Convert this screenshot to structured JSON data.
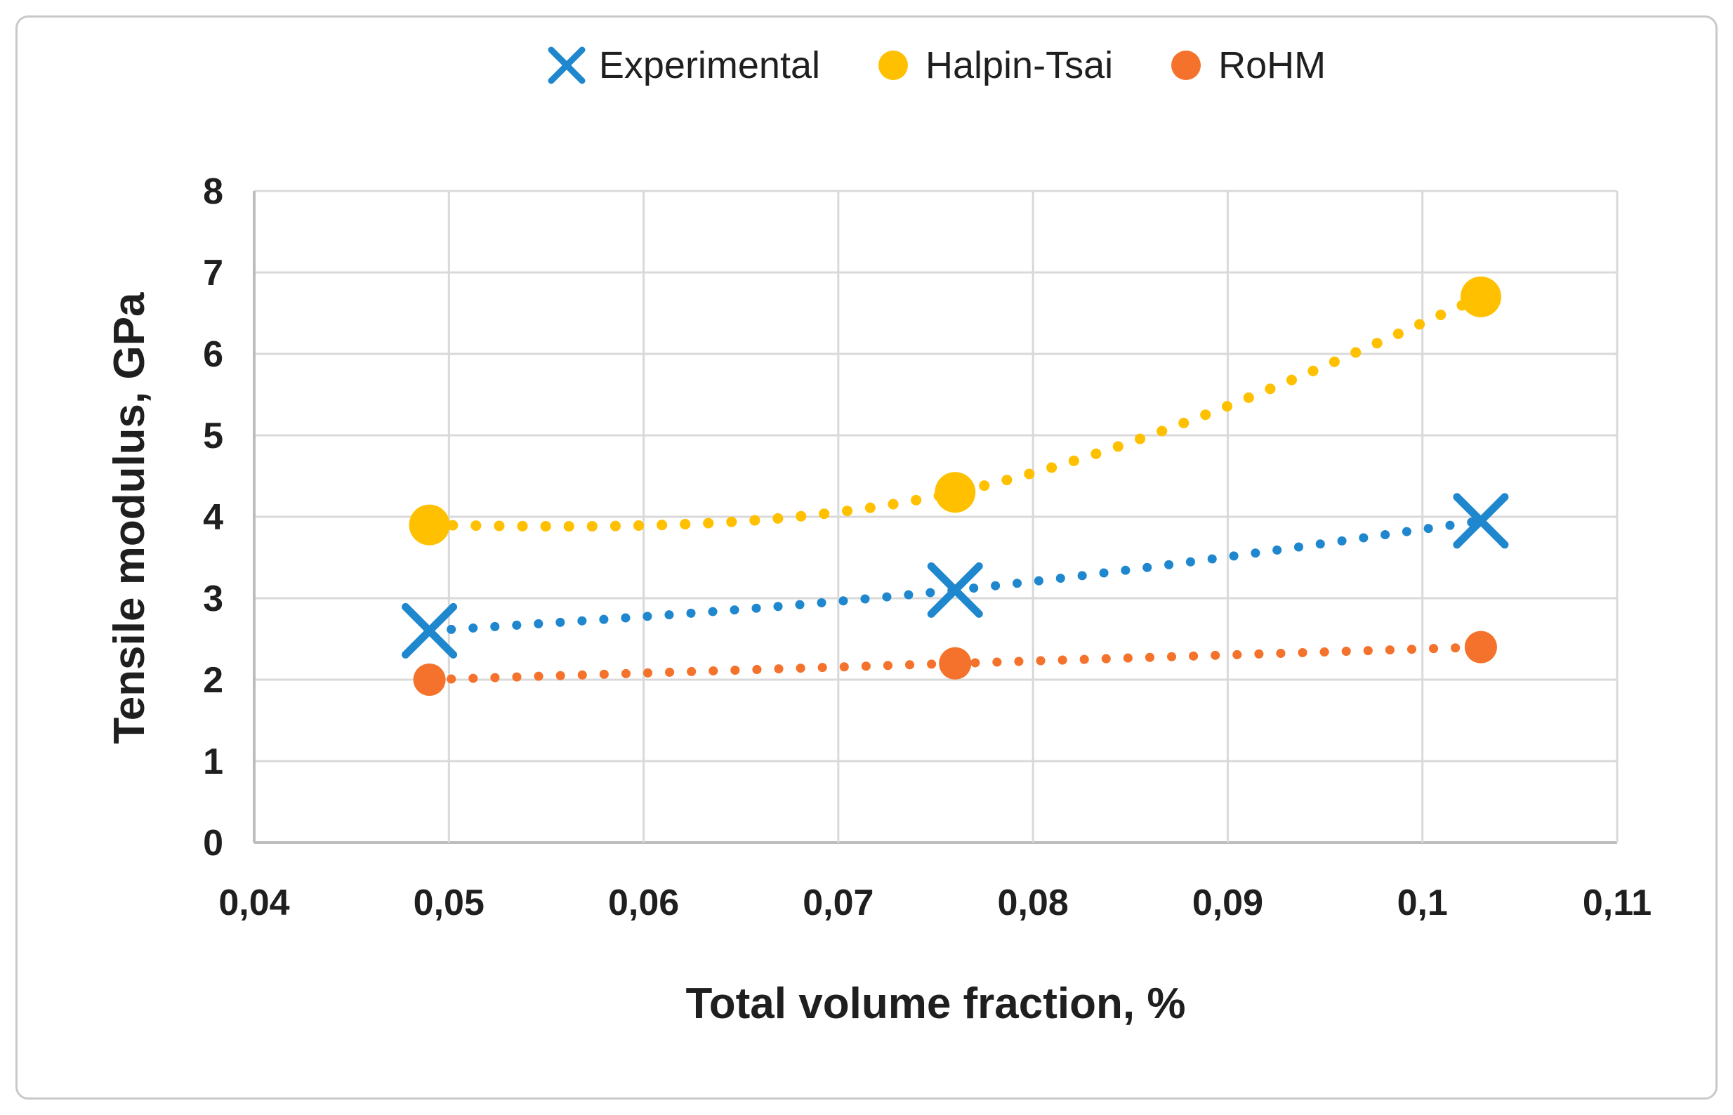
{
  "figure": {
    "background": "#ffffff",
    "frame_color": "#c9c9c9"
  },
  "legend": {
    "position": "top-center",
    "items": [
      {
        "label": "Experimental",
        "marker": "x-marker",
        "color": "#1f87ce"
      },
      {
        "label": "Halpin-Tsai",
        "marker": "circle-marker",
        "color": "#ffc000"
      },
      {
        "label": "RoHM",
        "marker": "circle-marker",
        "color": "#f4722b"
      }
    ]
  },
  "chart_data": {
    "type": "scatter",
    "title": "",
    "xlabel": "Total volume fraction, %",
    "ylabel": "Tensile modulus, GPa",
    "xlim": [
      0.04,
      0.11
    ],
    "ylim": [
      0,
      8
    ],
    "grid": true,
    "line_style": "dotted-smooth",
    "decimal_separator": ",",
    "x_ticks": [
      {
        "value": 0.04,
        "label": "0,04"
      },
      {
        "value": 0.05,
        "label": "0,05"
      },
      {
        "value": 0.06,
        "label": "0,06"
      },
      {
        "value": 0.07,
        "label": "0,07"
      },
      {
        "value": 0.08,
        "label": "0,08"
      },
      {
        "value": 0.09,
        "label": "0,09"
      },
      {
        "value": 0.1,
        "label": "0,1"
      },
      {
        "value": 0.11,
        "label": "0,11"
      }
    ],
    "y_ticks": [
      {
        "value": 0,
        "label": "0"
      },
      {
        "value": 1,
        "label": "1"
      },
      {
        "value": 2,
        "label": "2"
      },
      {
        "value": 3,
        "label": "3"
      },
      {
        "value": 4,
        "label": "4"
      },
      {
        "value": 5,
        "label": "5"
      },
      {
        "value": 6,
        "label": "6"
      },
      {
        "value": 7,
        "label": "7"
      },
      {
        "value": 8,
        "label": "8"
      }
    ],
    "x": [
      0.049,
      0.076,
      0.103
    ],
    "series": [
      {
        "name": "Experimental",
        "color": "#1f87ce",
        "marker": "x",
        "marker_size": 34,
        "line_width": 13,
        "dot_gap": 31,
        "values": [
          2.6,
          3.1,
          3.95
        ]
      },
      {
        "name": "Halpin-Tsai",
        "color": "#ffc000",
        "marker": "circle",
        "marker_size": 29,
        "line_width": 15,
        "dot_gap": 33,
        "values": [
          3.9,
          4.3,
          6.7
        ]
      },
      {
        "name": "RoHM",
        "color": "#f4722b",
        "marker": "circle",
        "marker_size": 23,
        "line_width": 13,
        "dot_gap": 31,
        "values": [
          2.0,
          2.2,
          2.4
        ]
      }
    ],
    "colors": {
      "grid": "#d9d9d9",
      "axis": "#bdbdbd",
      "text": "#1f1f1f"
    },
    "legend_position": "top-center"
  }
}
